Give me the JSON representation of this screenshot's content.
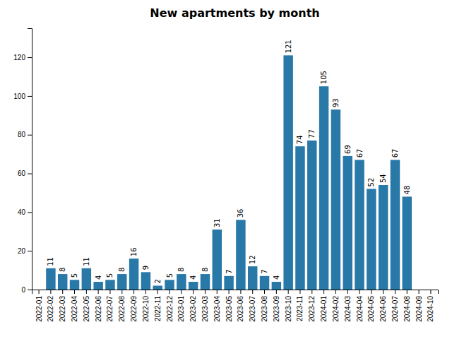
{
  "chart_data": {
    "type": "bar",
    "title": "New apartments by month",
    "categories": [
      "2022-01",
      "2022-02",
      "2022-03",
      "2022-04",
      "2022-05",
      "2022-06",
      "2022-07",
      "2022-08",
      "2022-09",
      "2022-10",
      "2022-11",
      "2022-12",
      "2023-01",
      "2023-02",
      "2023-03",
      "2023-04",
      "2023-05",
      "2023-06",
      "2023-07",
      "2023-08",
      "2023-09",
      "2023-10",
      "2023-11",
      "2023-12",
      "2024-01",
      "2024-02",
      "2024-03",
      "2024-04",
      "2024-05",
      "2024-06",
      "2024-07",
      "2024-08",
      "2024-09",
      "2024-10"
    ],
    "values": [
      0,
      11,
      8,
      5,
      11,
      4,
      5,
      8,
      16,
      9,
      2,
      5,
      8,
      4,
      8,
      31,
      7,
      36,
      12,
      7,
      4,
      121,
      74,
      77,
      105,
      93,
      69,
      67,
      52,
      54,
      67,
      48,
      0,
      0
    ],
    "color": "#2878a8",
    "ylim": [
      0,
      135
    ],
    "yticks": [
      0,
      20,
      40,
      60,
      80,
      100,
      120
    ],
    "data_labels": true,
    "grid": false
  }
}
